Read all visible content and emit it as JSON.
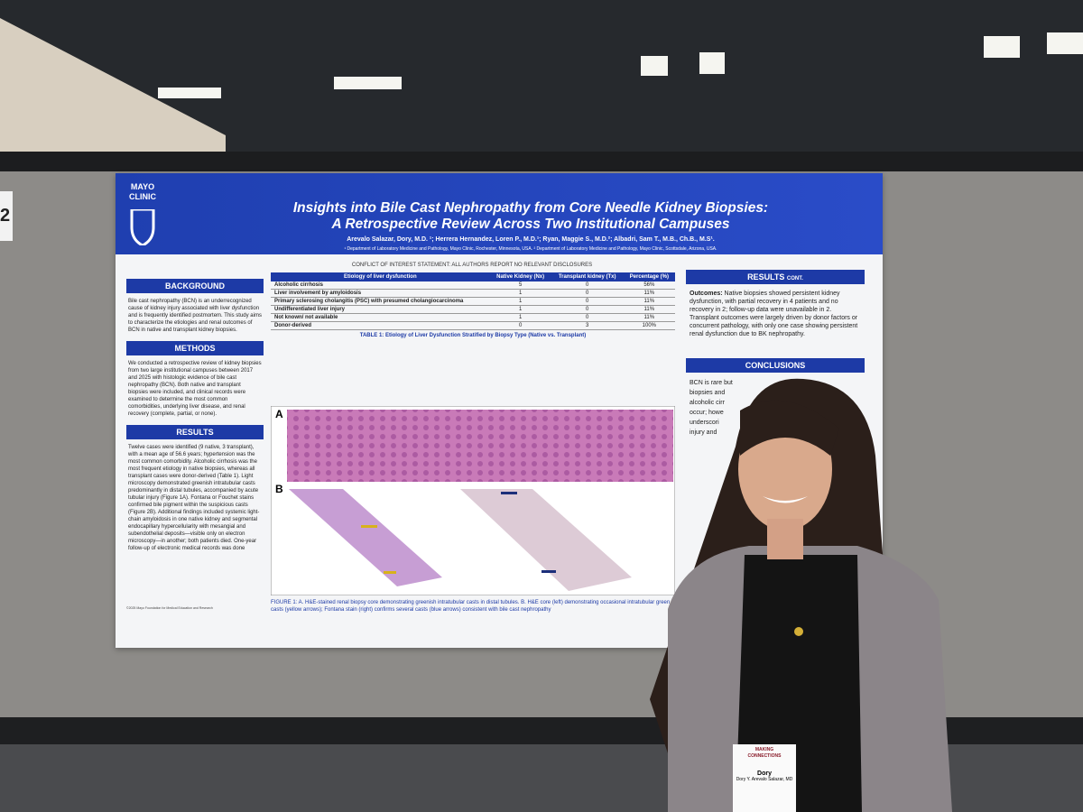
{
  "booth_number": "2",
  "poster": {
    "logo": [
      "MAYO",
      "CLINIC"
    ],
    "title_lines": [
      "Insights into Bile Cast Nephropathy from Core Needle Kidney Biopsies:",
      "A Retrospective Review Across Two Institutional Campuses"
    ],
    "authors": "Arevalo Salazar, Dory, M.D. ¹; Herrera Hernandez, Loren P., M.D.¹; Ryan, Maggie S., M.D.²; Albadri, Sam T., M.B., Ch.B., M.S¹.",
    "affiliations": "¹ Department of Laboratory Medicine and Pathology, Mayo Clinic, Rochester, Minnesota, USA. ² Department of Laboratory Medicine and Pathology, Mayo Clinic, Scottsdale, Arizona, USA.",
    "conflict": "CONFLICT OF INTEREST STATEMENT: ALL AUTHORS REPORT NO RELEVANT DISCLOSURES",
    "sections": [
      {
        "heading": "BACKGROUND",
        "text": "Bile cast nephropathy (BCN) is an underrecognized cause of kidney injury associated with liver dysfunction and is frequently identified postmortem. This study aims to characterize the etiologies and renal outcomes of BCN in native and transplant kidney biopsies."
      },
      {
        "heading": "METHODS",
        "text": "We conducted a retrospective review of kidney biopsies from two large institutional campuses between 2017 and 2025 with histologic evidence of bile cast nephropathy (BCN). Both native and transplant biopsies were included, and clinical records were examined to determine the most common comorbidities, underlying liver disease, and renal recovery (complete, partial, or none)."
      },
      {
        "heading": "RESULTS",
        "text": "Twelve cases were identified (9 native, 3 transplant), with a mean age of 56.6 years; hypertension was the most common comorbidity. Alcoholic cirrhosis was the most frequent etiology in native biopsies, whereas all transplant cases were donor-derived (Table 1). Light microscopy demonstrated greenish intratubular casts predominantly in distal tubules, accompanied by acute tubular injury (Figure 1A). Fontana or Fouchet stains confirmed bile pigment within the suspicious casts (Figure 2B). Additional findings included systemic light-chain amyloidosis in one native kidney and segmental endocapillary hypercellularity with mesangial and subendothelial deposits—visible only on electron microscopy—in another; both patients died. One-year follow-up of electronic medical records was done"
      }
    ],
    "table": {
      "header": [
        "Etiology of liver dysfunction",
        "Native Kidney (Nx)",
        "Transplant kidney (Tx)",
        "Percentage (%)"
      ],
      "rows": [
        [
          "Alcoholic cirrhosis",
          "5",
          "0",
          "56%"
        ],
        [
          "Liver involvement by amyloidosis",
          "1",
          "0",
          "11%"
        ],
        [
          "Primary sclerosing cholangitis (PSC) with presumed cholangiocarcinoma",
          "1",
          "0",
          "11%"
        ],
        [
          "Undifferentiated liver injury",
          "1",
          "0",
          "11%"
        ],
        [
          "Not known/ not available",
          "1",
          "0",
          "11%"
        ],
        [
          "Donor-derived",
          "0",
          "3",
          "100%"
        ]
      ],
      "caption": "TABLE 1: Etiology of Liver Dysfunction Stratified by Biopsy Type (Native vs. Transplant)"
    },
    "figure": {
      "panels": [
        "A",
        "B"
      ],
      "caption": "FIGURE 1: A. H&E-stained renal biopsy core demonstrating greenish intratubular casts in distal tubules. B. H&E core (left) demonstrating occasional intratubular green casts (yellow arrows); Fontana stain (right) confirms several casts (blue arrows) consistent with bile cast nephropathy"
    },
    "results_cont": {
      "heading": "RESULTS",
      "heading_suffix": "CONT.",
      "label": "Outcomes:",
      "text": "Native biopsies showed persistent kidney dysfunction, with partial recovery in 4 patients and no recovery in 2; follow-up data were unavailable in 2. Transplant outcomes were largely driven by donor factors or concurrent pathology, with only one case showing persistent renal dysfunction due to BK nephropathy."
    },
    "conclusions": {
      "heading": "CONCLUSIONS",
      "lines": [
        "BCN is rare but",
        "biopsies and",
        "alcoholic cirr",
        "occur; howe",
        "underscori",
        "injury and"
      ]
    },
    "copyright": "©2025 Mayo Foundation for Medical Education and Research"
  },
  "badge": {
    "event": [
      "MAKING",
      "CONNECTIONS"
    ],
    "first_name": "Dory",
    "full_name": "Dory Y. Arevalo Salazar, MD"
  }
}
